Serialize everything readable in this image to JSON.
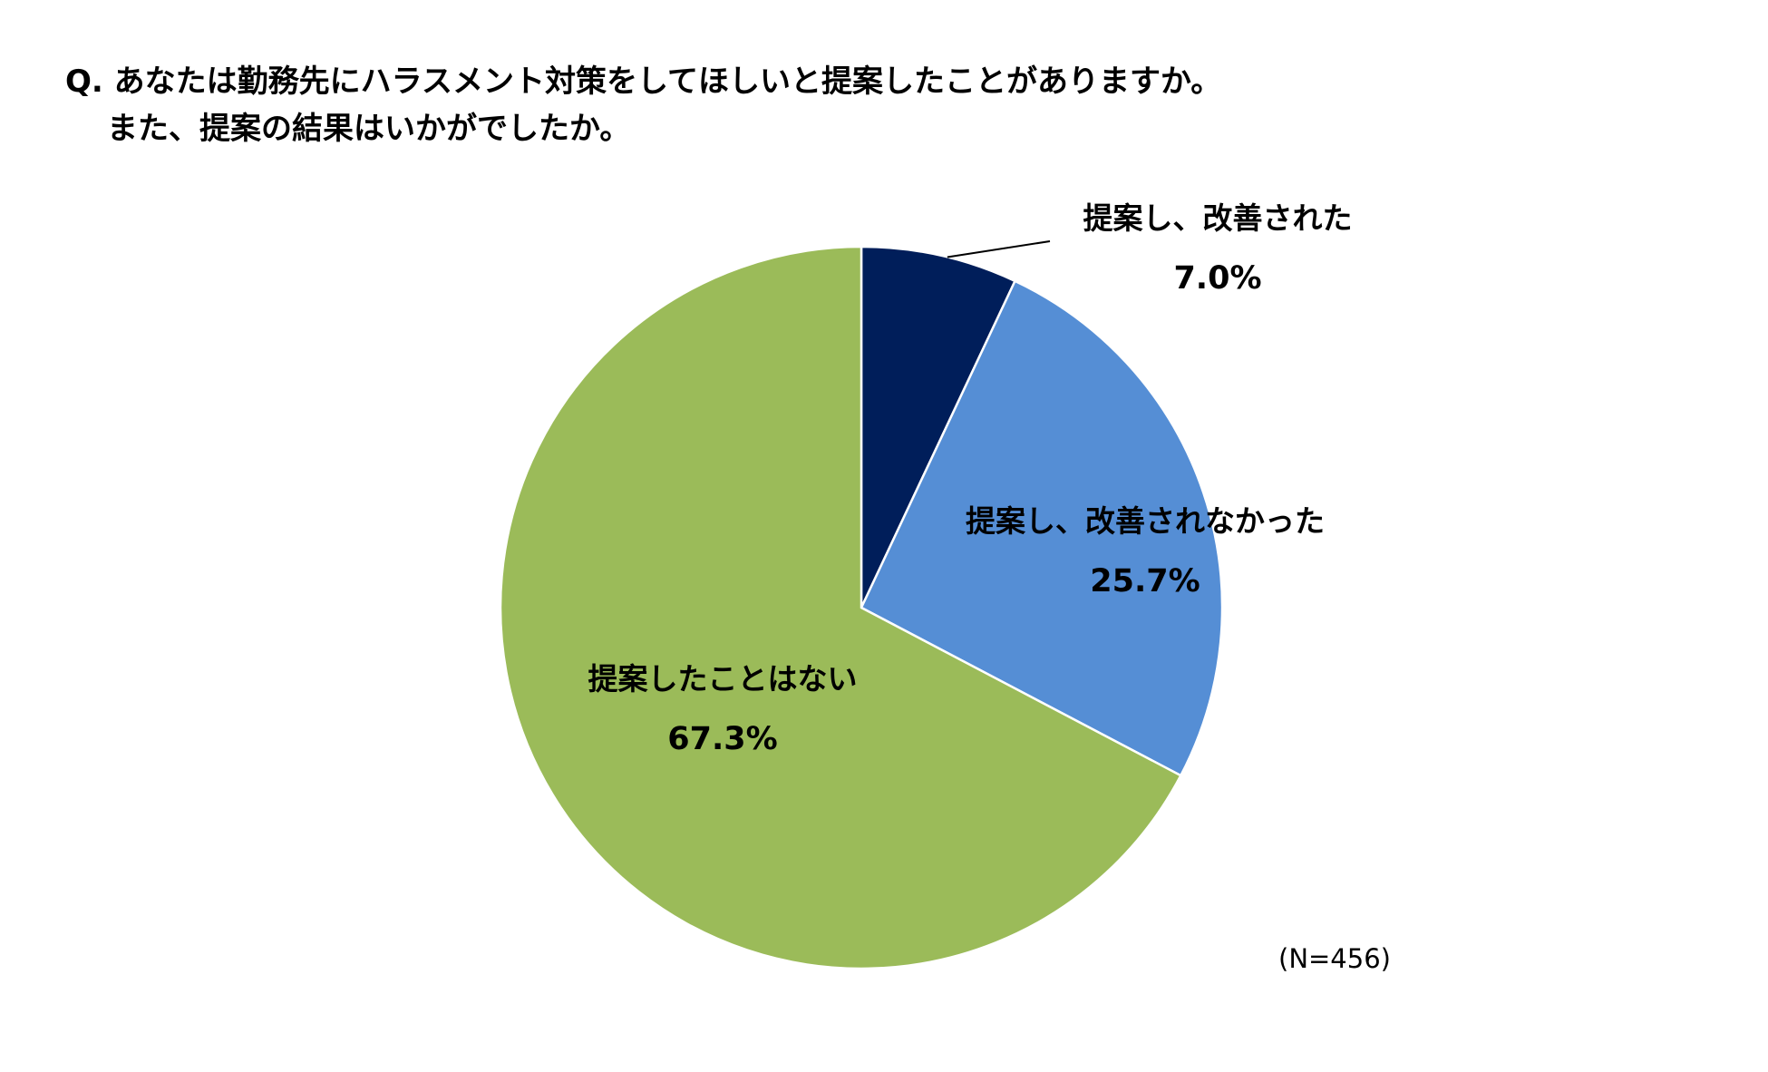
{
  "question": {
    "line1": "Q. あなたは勤務先にハラスメント対策をしてほしいと提案したことがありますか。",
    "line2": "また、提案の結果はいかがでしたか。"
  },
  "note": "(N=456)",
  "chart_data": {
    "type": "pie",
    "start_angle_deg": 0,
    "direction": "clockwise",
    "slices": [
      {
        "label": "提案し、改善された",
        "value": 7.0,
        "value_label": "7.0%",
        "color": "#001E5A"
      },
      {
        "label": "提案し、改善されなかった",
        "value": 25.7,
        "value_label": "25.7%",
        "color": "#558ED5"
      },
      {
        "label": "提案したことはない",
        "value": 67.3,
        "value_label": "67.3%",
        "color": "#9BBB59"
      }
    ]
  }
}
